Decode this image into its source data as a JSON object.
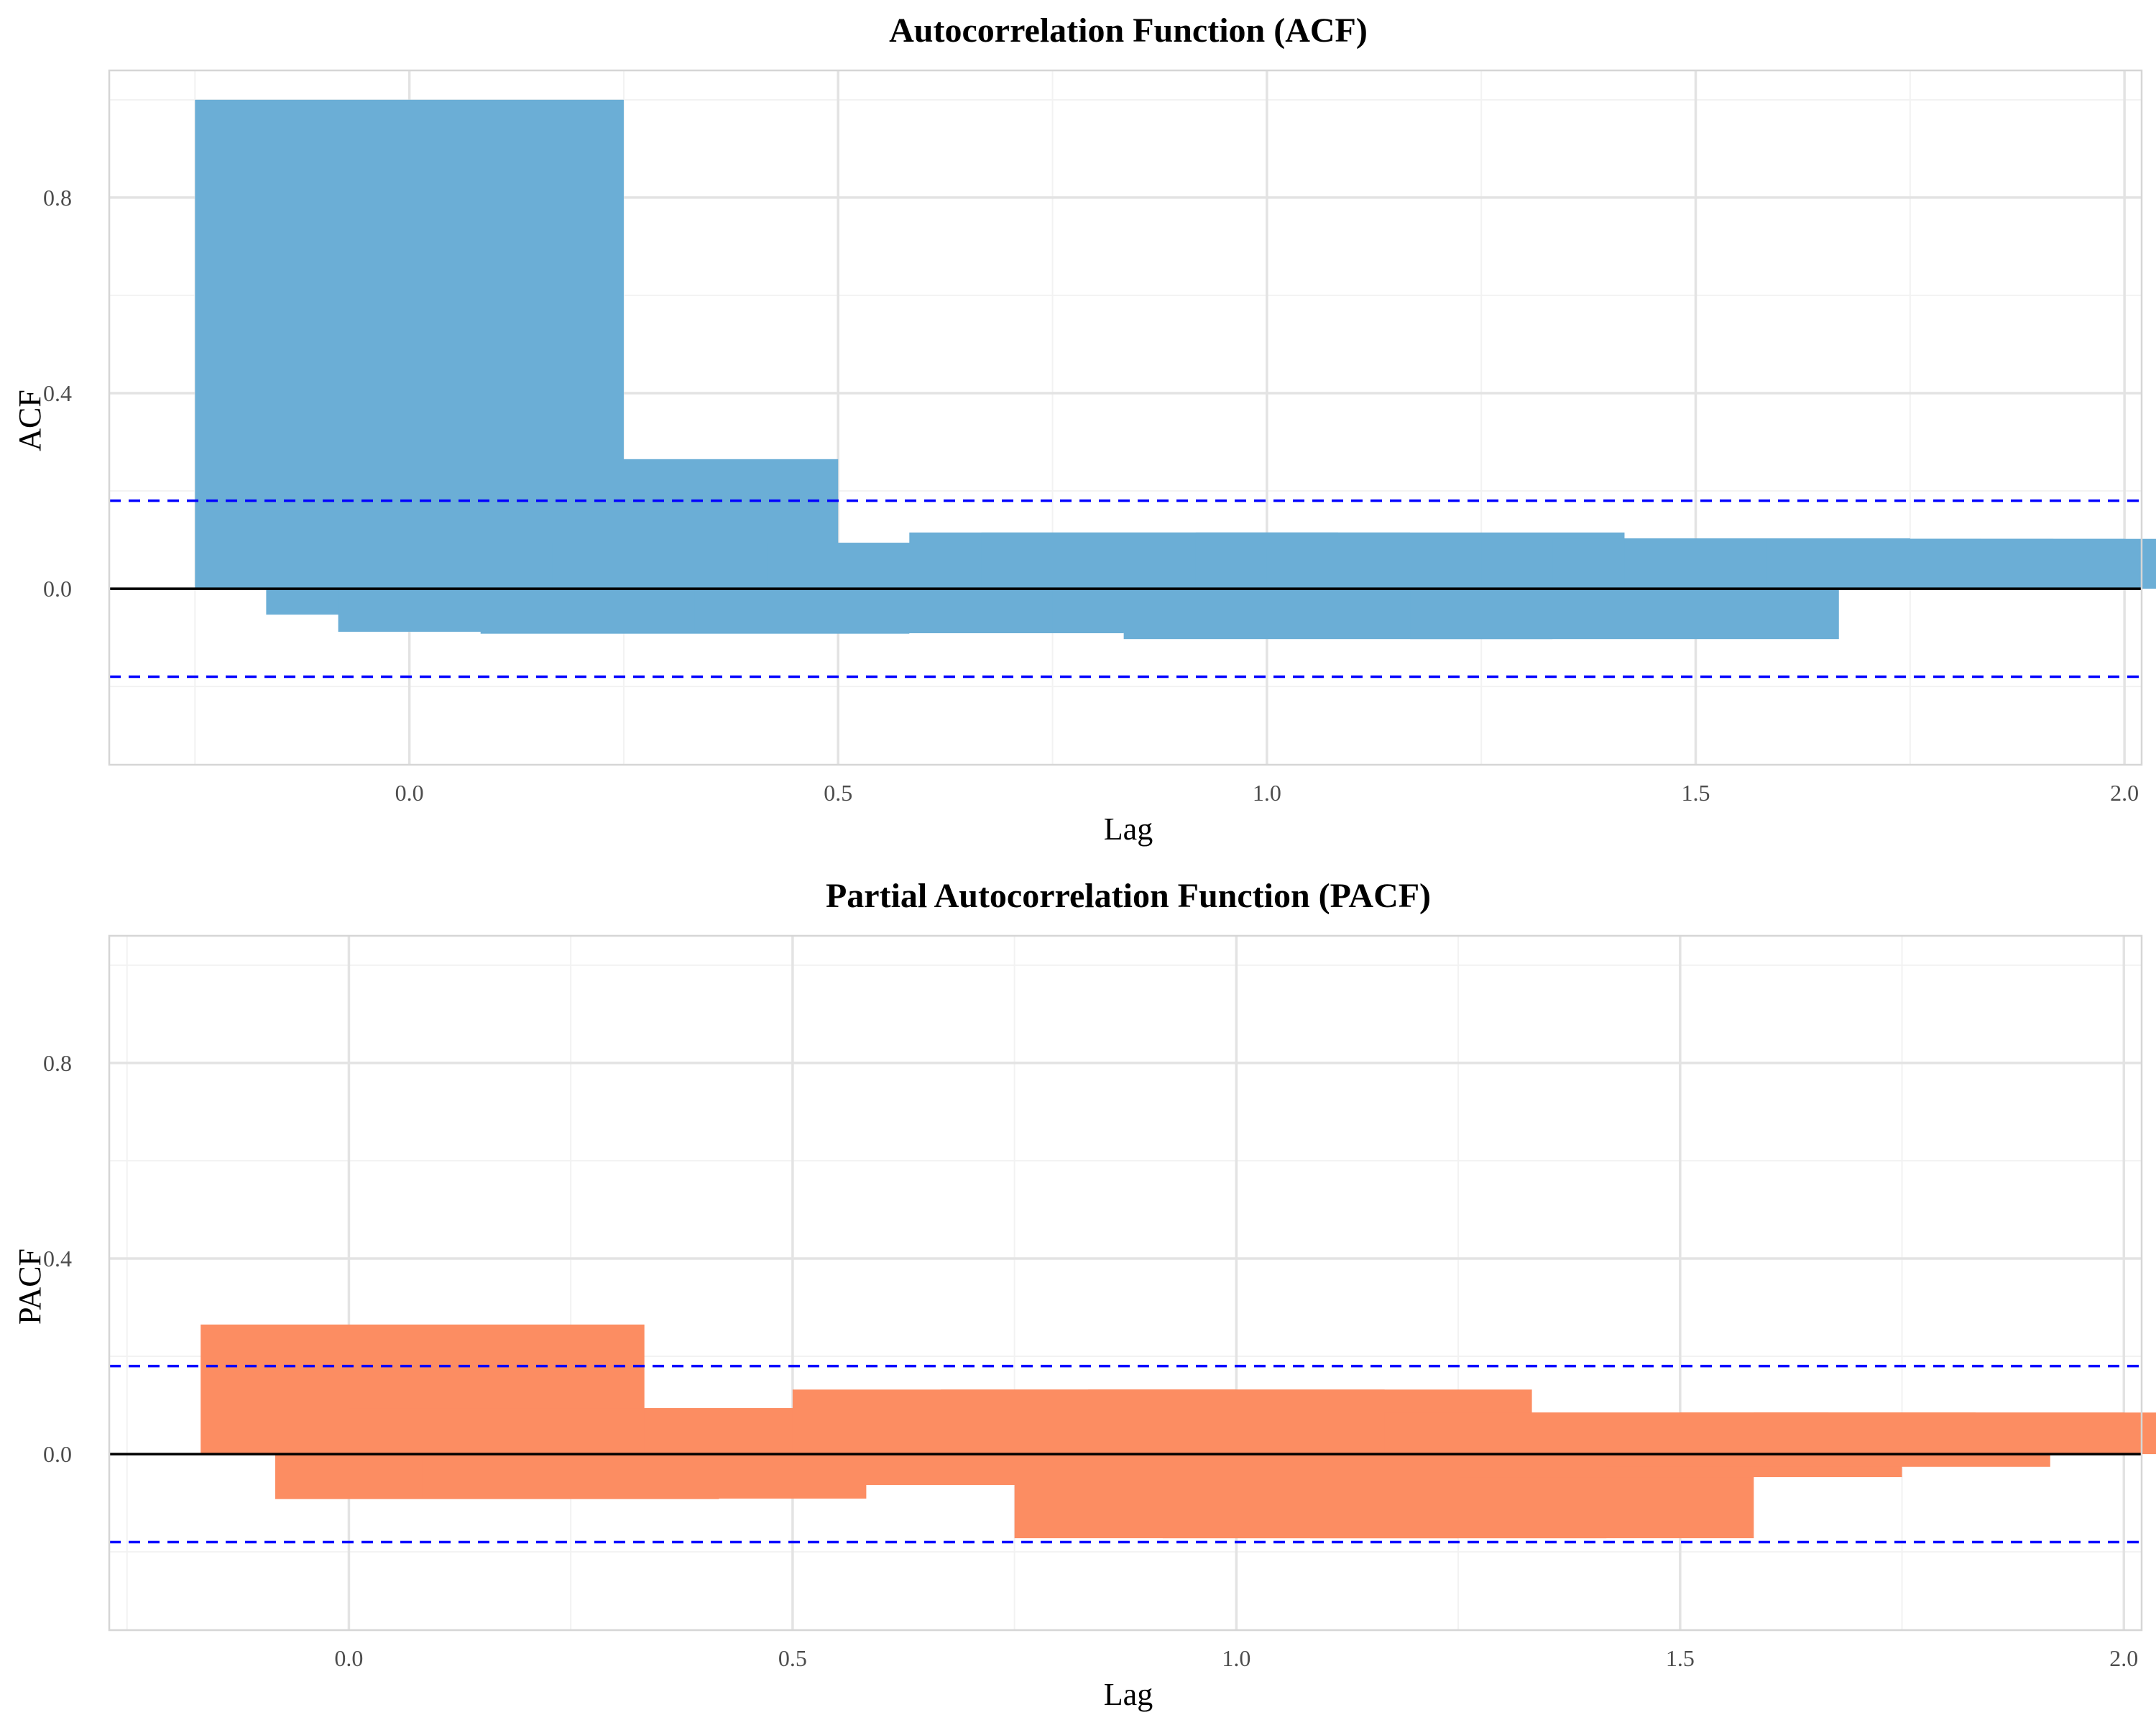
{
  "chart_data": [
    {
      "type": "bar",
      "title": "Autocorrelation Function (ACF)",
      "xlabel": "Lag",
      "ylabel": "ACF",
      "xlim": [
        -0.35,
        2.02
      ],
      "ylim": [
        -0.36,
        1.06
      ],
      "x_ticks": [
        0.0,
        0.5,
        1.0,
        1.5,
        2.0
      ],
      "x_tick_labels": [
        "0.0",
        "0.5",
        "1.0",
        "1.5",
        "2.0"
      ],
      "y_ticks": [
        0.0,
        0.4,
        0.8
      ],
      "y_tick_labels": [
        "0.0",
        "0.4",
        "0.8"
      ],
      "x_minor_ticks": [
        -0.25,
        0.25,
        0.75,
        1.25,
        1.75
      ],
      "y_minor_ticks": [
        -0.2,
        0.2,
        0.6,
        1.0
      ],
      "grid": true,
      "bar_color": "#6baed6",
      "confidence_bound": 0.18,
      "confidence_color": "#0000ff",
      "bars": [
        {
          "x": 0.0,
          "value": 1.0
        },
        {
          "x": 0.083,
          "value": -0.053
        },
        {
          "x": 0.167,
          "value": -0.088
        },
        {
          "x": 0.25,
          "value": 0.265
        },
        {
          "x": 0.333,
          "value": -0.092
        },
        {
          "x": 0.417,
          "value": 0.093
        },
        {
          "x": 0.5,
          "value": 0.094
        },
        {
          "x": 0.583,
          "value": -0.091
        },
        {
          "x": 0.667,
          "value": 0.094
        },
        {
          "x": 0.75,
          "value": -0.03
        },
        {
          "x": 0.833,
          "value": 0.115
        },
        {
          "x": 0.917,
          "value": 0.115
        },
        {
          "x": 1.0,
          "value": -0.089
        },
        {
          "x": 1.083,
          "value": -0.103
        },
        {
          "x": 1.167,
          "value": 0.115
        },
        {
          "x": 1.25,
          "value": 0.083
        },
        {
          "x": 1.333,
          "value": 0.052
        },
        {
          "x": 1.417,
          "value": -0.103
        },
        {
          "x": 1.5,
          "value": 0.103
        },
        {
          "x": 1.583,
          "value": 0.102
        },
        {
          "x": 1.667,
          "value": 0.102
        },
        {
          "x": 1.75,
          "value": 0.102
        },
        {
          "x": 1.833,
          "value": 0.102
        }
      ]
    },
    {
      "type": "bar",
      "title": "Partial Autocorrelation Function (PACF)",
      "xlabel": "Lag",
      "ylabel": "PACF",
      "xlim": [
        -0.27,
        2.02
      ],
      "ylim": [
        -0.36,
        1.06
      ],
      "x_ticks": [
        0.0,
        0.5,
        1.0,
        1.5,
        2.0
      ],
      "x_tick_labels": [
        "0.0",
        "0.5",
        "1.0",
        "1.5",
        "2.0"
      ],
      "y_ticks": [
        0.0,
        0.4,
        0.8
      ],
      "y_tick_labels": [
        "0.0",
        "0.4",
        "0.8"
      ],
      "x_minor_ticks": [
        -0.25,
        0.25,
        0.75,
        1.25,
        1.75
      ],
      "y_minor_ticks": [
        -0.2,
        0.2,
        0.6,
        1.0
      ],
      "grid": true,
      "bar_color": "#fc8d62",
      "confidence_bound": 0.18,
      "confidence_color": "#0000ff",
      "bars": [
        {
          "x": 0.083,
          "value": 0.265
        },
        {
          "x": 0.167,
          "value": -0.092
        },
        {
          "x": 0.25,
          "value": 0.093
        },
        {
          "x": 0.333,
          "value": -0.091
        },
        {
          "x": 0.417,
          "value": 0.094
        },
        {
          "x": 0.5,
          "value": -0.055
        },
        {
          "x": 0.583,
          "value": 0.094
        },
        {
          "x": 0.667,
          "value": -0.063
        },
        {
          "x": 0.75,
          "value": 0.132
        },
        {
          "x": 0.833,
          "value": -0.063
        },
        {
          "x": 0.917,
          "value": 0.132
        },
        {
          "x": 1.0,
          "value": -0.172
        },
        {
          "x": 1.083,
          "value": 0.132
        },
        {
          "x": 1.167,
          "value": -0.172
        },
        {
          "x": 1.25,
          "value": 0.075
        },
        {
          "x": 1.333,
          "value": -0.172
        },
        {
          "x": 1.417,
          "value": 0.085
        },
        {
          "x": 1.5,
          "value": -0.047
        },
        {
          "x": 1.583,
          "value": 0.085
        },
        {
          "x": 1.667,
          "value": -0.026
        },
        {
          "x": 1.75,
          "value": 0.085
        },
        {
          "x": 1.833,
          "value": 0.085
        }
      ]
    }
  ]
}
